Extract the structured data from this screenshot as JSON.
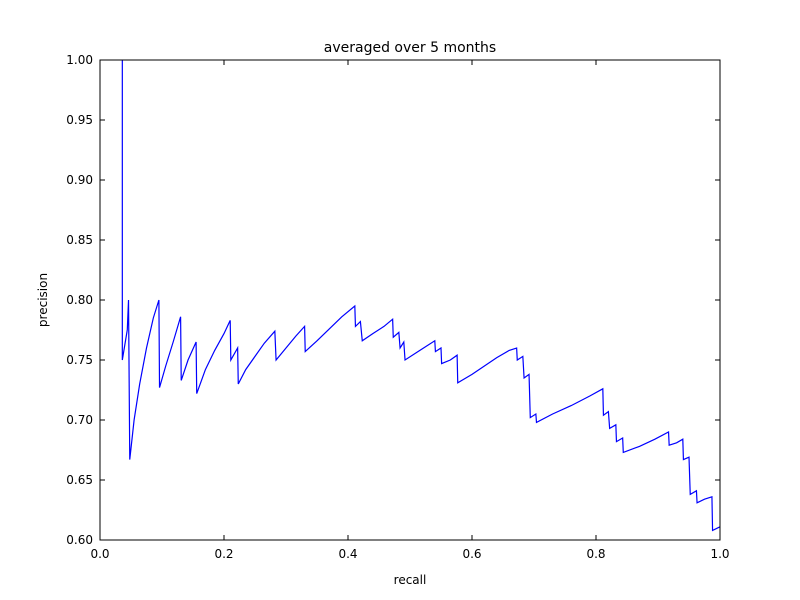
{
  "chart_data": {
    "type": "line",
    "title": "averaged over 5 months",
    "xlabel": "recall",
    "ylabel": "precision",
    "xlim": [
      0.0,
      1.0
    ],
    "ylim": [
      0.6,
      1.0
    ],
    "x_ticks": [
      "0.0",
      "0.2",
      "0.4",
      "0.6",
      "0.8",
      "1.0"
    ],
    "y_ticks": [
      "0.60",
      "0.65",
      "0.70",
      "0.75",
      "0.80",
      "0.85",
      "0.90",
      "0.95",
      "1.00"
    ],
    "grid": false,
    "legend": "none",
    "series": [
      {
        "color": "#0000ff",
        "points": [
          [
            0.036,
            1.0
          ],
          [
            0.036,
            0.75
          ],
          [
            0.044,
            0.775
          ],
          [
            0.046,
            0.8
          ],
          [
            0.048,
            0.667
          ],
          [
            0.055,
            0.7
          ],
          [
            0.064,
            0.73
          ],
          [
            0.075,
            0.76
          ],
          [
            0.086,
            0.785
          ],
          [
            0.095,
            0.8
          ],
          [
            0.096,
            0.727
          ],
          [
            0.106,
            0.745
          ],
          [
            0.118,
            0.765
          ],
          [
            0.13,
            0.786
          ],
          [
            0.131,
            0.733
          ],
          [
            0.142,
            0.75
          ],
          [
            0.155,
            0.765
          ],
          [
            0.156,
            0.722
          ],
          [
            0.17,
            0.742
          ],
          [
            0.185,
            0.758
          ],
          [
            0.2,
            0.772
          ],
          [
            0.21,
            0.783
          ],
          [
            0.211,
            0.75
          ],
          [
            0.222,
            0.76
          ],
          [
            0.223,
            0.73
          ],
          [
            0.235,
            0.742
          ],
          [
            0.25,
            0.753
          ],
          [
            0.265,
            0.764
          ],
          [
            0.282,
            0.774
          ],
          [
            0.284,
            0.75
          ],
          [
            0.3,
            0.76
          ],
          [
            0.316,
            0.77
          ],
          [
            0.33,
            0.778
          ],
          [
            0.331,
            0.757
          ],
          [
            0.35,
            0.766
          ],
          [
            0.37,
            0.776
          ],
          [
            0.39,
            0.786
          ],
          [
            0.411,
            0.795
          ],
          [
            0.412,
            0.778
          ],
          [
            0.42,
            0.782
          ],
          [
            0.423,
            0.766
          ],
          [
            0.44,
            0.772
          ],
          [
            0.458,
            0.778
          ],
          [
            0.472,
            0.784
          ],
          [
            0.473,
            0.769
          ],
          [
            0.482,
            0.773
          ],
          [
            0.484,
            0.76
          ],
          [
            0.49,
            0.765
          ],
          [
            0.492,
            0.75
          ],
          [
            0.51,
            0.756
          ],
          [
            0.525,
            0.761
          ],
          [
            0.54,
            0.766
          ],
          [
            0.541,
            0.757
          ],
          [
            0.55,
            0.76
          ],
          [
            0.551,
            0.747
          ],
          [
            0.565,
            0.75
          ],
          [
            0.576,
            0.754
          ],
          [
            0.577,
            0.731
          ],
          [
            0.6,
            0.738
          ],
          [
            0.62,
            0.745
          ],
          [
            0.64,
            0.752
          ],
          [
            0.66,
            0.758
          ],
          [
            0.672,
            0.76
          ],
          [
            0.673,
            0.75
          ],
          [
            0.682,
            0.753
          ],
          [
            0.684,
            0.735
          ],
          [
            0.692,
            0.738
          ],
          [
            0.694,
            0.702
          ],
          [
            0.703,
            0.705
          ],
          [
            0.704,
            0.698
          ],
          [
            0.73,
            0.705
          ],
          [
            0.76,
            0.712
          ],
          [
            0.79,
            0.72
          ],
          [
            0.811,
            0.726
          ],
          [
            0.812,
            0.704
          ],
          [
            0.82,
            0.707
          ],
          [
            0.822,
            0.693
          ],
          [
            0.832,
            0.696
          ],
          [
            0.833,
            0.682
          ],
          [
            0.843,
            0.685
          ],
          [
            0.844,
            0.673
          ],
          [
            0.87,
            0.678
          ],
          [
            0.895,
            0.684
          ],
          [
            0.917,
            0.69
          ],
          [
            0.918,
            0.679
          ],
          [
            0.93,
            0.681
          ],
          [
            0.94,
            0.684
          ],
          [
            0.941,
            0.667
          ],
          [
            0.95,
            0.669
          ],
          [
            0.952,
            0.638
          ],
          [
            0.962,
            0.641
          ],
          [
            0.963,
            0.631
          ],
          [
            0.975,
            0.634
          ],
          [
            0.987,
            0.636
          ],
          [
            0.988,
            0.608
          ],
          [
            1.0,
            0.611
          ]
        ]
      }
    ]
  }
}
